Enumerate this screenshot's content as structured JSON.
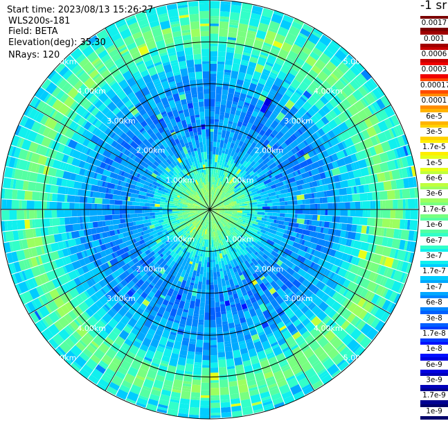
{
  "header": {
    "start_time": "Start time: 2023/08/13 15:26:27",
    "instrument": "WLS200s-181",
    "field": "Field: BETA",
    "elevation": "Elevation(deg): 35.30",
    "nrays": "NRays: 120"
  },
  "colorbar": {
    "unit": "-1 sr",
    "labels": [
      "0.0017",
      "0.001",
      "0.0006",
      "0.0003",
      "0.00017",
      "0.0001",
      "6e-5",
      "3e-5",
      "1.7e-5",
      "1e-5",
      "6e-6",
      "3e-6",
      "1.7e-6",
      "1e-6",
      "6e-7",
      "3e-7",
      "1.7e-7",
      "1e-7",
      "6e-8",
      "3e-8",
      "1.7e-8",
      "1e-8",
      "6e-9",
      "3e-9",
      "1.7e-9",
      "1e-9"
    ],
    "colors": [
      "#7a0000",
      "#a00000",
      "#c80000",
      "#f00000",
      "#ff4a00",
      "#ff8c00",
      "#ffb400",
      "#ffd200",
      "#ffee00",
      "#e6ff1a",
      "#c0ff3d",
      "#9cff5f",
      "#78ff80",
      "#55ffa2",
      "#33ffc8",
      "#10f0ee",
      "#00ccff",
      "#00a8ff",
      "#0084ff",
      "#0060ff",
      "#003cff",
      "#0010ff",
      "#0000e0",
      "#0000b8",
      "#000090",
      "#00006a"
    ]
  },
  "chart_data": {
    "type": "heatmap",
    "projection": "polar PPI",
    "field": "BETA",
    "units": "-1 sr",
    "n_rays": 120,
    "elevation_deg": 35.3,
    "range_rings_km": [
      1.0,
      2.0,
      3.0,
      4.0,
      5.0
    ],
    "max_range_km": 5.0,
    "ring_labels": [
      "1.00km",
      "2.00km",
      "3.00km",
      "4.00km",
      "5.00km"
    ],
    "radial_profile": [
      {
        "range_km": 0.5,
        "dominant_value": "1.7e-6"
      },
      {
        "range_km": 1.5,
        "dominant_value": "1e-7"
      },
      {
        "range_km": 2.5,
        "dominant_value": "6e-8"
      },
      {
        "range_km": 3.5,
        "dominant_value": "1.7e-7"
      },
      {
        "range_km": 4.3,
        "dominant_value": "1.7e-6"
      },
      {
        "range_km": 4.8,
        "dominant_value": "3e-7"
      }
    ],
    "grid": true
  }
}
